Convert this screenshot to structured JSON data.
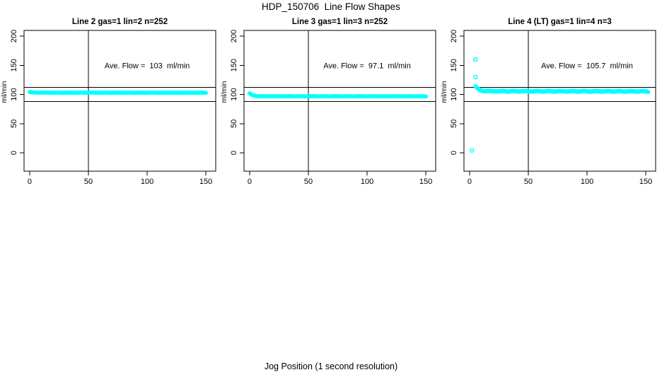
{
  "chart_data": {
    "type": "scatter",
    "main_title": "HDP_150706  Line Flow Shapes",
    "xlabel": "Jog Position (1 second resolution)",
    "ylabel": "ml/min",
    "x_ticks": [
      0,
      50,
      100,
      150
    ],
    "y_ticks": [
      0,
      50,
      100,
      150,
      200
    ],
    "xlim": [
      -4.8,
      158.4
    ],
    "ylim": [
      -31.5,
      209.7
    ],
    "marker_color": "#00FFFF",
    "axis_color": "#000000",
    "grid": false,
    "legend": null,
    "panels": [
      {
        "title": "Line 2 gas=1 lin=2 n=252",
        "annotation": "Ave. Flow =  103  ml/min",
        "ave_flow": 103,
        "n": 252,
        "ref_hlines": [
          112,
          88
        ],
        "ref_vline": 50,
        "x_start": 0,
        "x_end": 150,
        "dot_count": 251,
        "jitter": 0.2,
        "series_anchors": [
          [
            0,
            104.2
          ],
          [
            2,
            103.5
          ],
          [
            6,
            103.1
          ],
          [
            150,
            103
          ]
        ],
        "outliers": []
      },
      {
        "title": "Line 3 gas=1 lin=3 n=252",
        "annotation": "Ave. Flow =  97.1  ml/min",
        "ave_flow": 97.1,
        "n": 252,
        "ref_hlines": [
          112,
          88
        ],
        "ref_vline": 50,
        "x_start": 0,
        "x_end": 150,
        "dot_count": 251,
        "jitter": 0.2,
        "series_anchors": [
          [
            0,
            102
          ],
          [
            1,
            100.2
          ],
          [
            3,
            98.3
          ],
          [
            6,
            97.2
          ],
          [
            10,
            96.9
          ],
          [
            150,
            96.8
          ]
        ],
        "outliers": []
      },
      {
        "title": "Line 4 (LT) gas=1 lin=4 n=3",
        "annotation": "Ave. Flow =  105.7  ml/min",
        "ave_flow": 105.7,
        "n": 3,
        "ref_hlines": [
          112,
          88
        ],
        "ref_vline": 50,
        "x_start": 5,
        "x_end": 152,
        "dot_count": 251,
        "jitter": 1.0,
        "series_anchors": [
          [
            5,
            114
          ],
          [
            6,
            111.5
          ],
          [
            7,
            109.5
          ],
          [
            8,
            108
          ],
          [
            10,
            106.8
          ],
          [
            14,
            106
          ],
          [
            20,
            105.6
          ],
          [
            152,
            105.3
          ]
        ],
        "outliers": [
          [
            2,
            4
          ],
          [
            5,
            160
          ],
          [
            5,
            130
          ]
        ]
      }
    ]
  }
}
